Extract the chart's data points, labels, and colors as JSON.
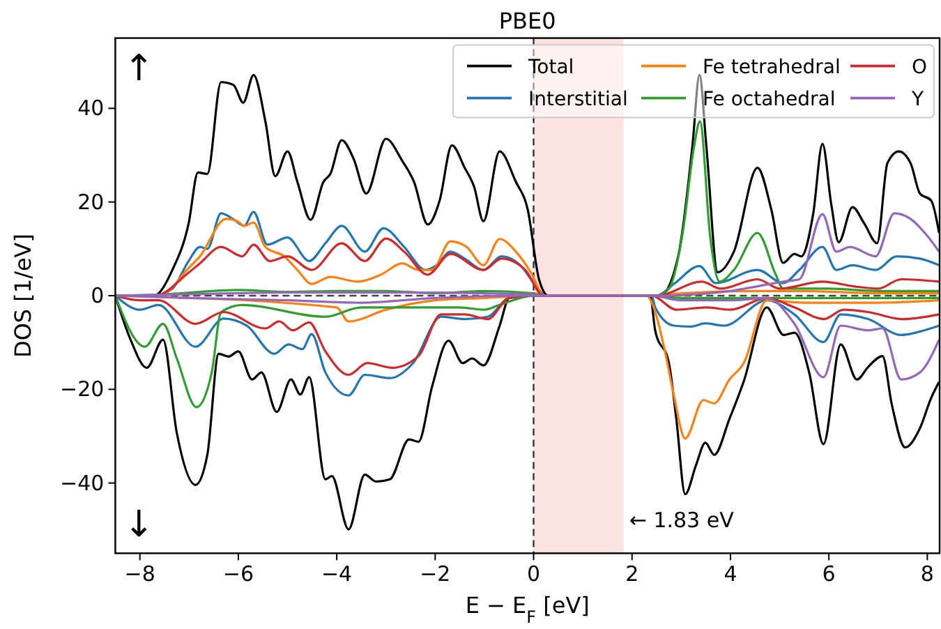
{
  "chart_data": {
    "type": "line",
    "title": "PBE0",
    "xlabel": "E − E$_{F}$ [eV]",
    "ylabel": "DOS [1/eV]",
    "xlim": [
      -8.5,
      8.25
    ],
    "ylim": [
      -55,
      55
    ],
    "xticks": [
      {
        "value": -8,
        "label": "−8"
      },
      {
        "value": -6,
        "label": "−6"
      },
      {
        "value": -4,
        "label": "−4"
      },
      {
        "value": -2,
        "label": "−2"
      },
      0,
      2,
      4,
      6,
      8
    ],
    "yticks": [
      {
        "value": -40,
        "label": "−40"
      },
      {
        "value": -20,
        "label": "−20"
      },
      0,
      20,
      40
    ],
    "legend": "top right",
    "ref_lines": [
      {
        "axis": "x",
        "value": 0,
        "color": "#333333",
        "line_style": "dashed"
      },
      {
        "axis": "y",
        "value": 0,
        "color": "#444444",
        "line_style": "dashed"
      }
    ],
    "bands": [
      {
        "axis": "x",
        "from": 0,
        "to": 1.83,
        "color": "#fde2e2"
      }
    ],
    "annotations": [
      "↑",
      "↓",
      {
        "text": "← 1.83 eV",
        "x": 1.83,
        "y": -48
      }
    ],
    "series": [
      {
        "name": "Total",
        "color": "#000000",
        "x": [
          -8.5,
          -7.72,
          -7.34,
          -7.01,
          -6.82,
          -6.63,
          -6.35,
          -6.1,
          -5.9,
          -5.69,
          -5.45,
          -5.25,
          -5.0,
          -4.8,
          -4.53,
          -4.27,
          -4.13,
          -3.9,
          -3.66,
          -3.4,
          -3.0,
          -2.67,
          -2.43,
          -2.15,
          -1.91,
          -1.66,
          -1.4,
          -1.21,
          -1.02,
          -0.69,
          -0.36,
          -0.12,
          0.11,
          0.3,
          2.57,
          2.94,
          3.23,
          3.37,
          3.51,
          3.74,
          4.07,
          4.55,
          4.83,
          5.07,
          5.3,
          5.44,
          5.68,
          5.87,
          6.05,
          6.2,
          6.48,
          6.72,
          6.98,
          7.19,
          7.42,
          7.66,
          7.85,
          8.08,
          8.24
        ],
        "values": [
          0,
          0,
          5.5,
          15.4,
          26.3,
          26,
          45.6,
          45,
          41.2,
          47.1,
          37.2,
          25.5,
          30.8,
          24.3,
          16.2,
          24.3,
          26,
          33.2,
          29.3,
          21.8,
          33.5,
          28.8,
          24.3,
          15.2,
          20.3,
          32.1,
          27.3,
          23.3,
          15.9,
          30.8,
          24.3,
          18.4,
          3.5,
          0,
          0,
          8.5,
          32.3,
          47.1,
          32,
          5,
          9.4,
          27.3,
          18.4,
          7,
          8.9,
          8.4,
          17.4,
          32.4,
          19.4,
          11.4,
          18.9,
          15.4,
          11.2,
          28.3,
          30.8,
          28.3,
          21.8,
          20.3,
          13.4
        ]
      },
      {
        "color": "#000000",
        "x": [
          -8.5,
          -8.19,
          -7.86,
          -7.53,
          -7.25,
          -6.87,
          -6.63,
          -6.4,
          -6.2,
          -6.0,
          -5.72,
          -5.53,
          -5.22,
          -4.93,
          -4.74,
          -4.56,
          -4.23,
          -4.1,
          -3.76,
          -3.43,
          -3.2,
          -2.92,
          -2.53,
          -2.34,
          -2.06,
          -1.73,
          -1.44,
          -1.25,
          -1.02,
          -0.69,
          -0.5,
          -0.3,
          2.37,
          2.47,
          2.75,
          2.9,
          3.08,
          3.3,
          3.49,
          3.67,
          3.98,
          4.27,
          4.74,
          5.08,
          5.3,
          5.6,
          5.89,
          6.24,
          6.57,
          6.8,
          7.09,
          7.28,
          7.55,
          7.85,
          8.08,
          8.24
        ],
        "values": [
          0,
          -9.4,
          -15.4,
          -9.4,
          -29.3,
          -40.4,
          -34,
          -12.4,
          -13,
          -11.9,
          -17.9,
          -16.4,
          -24.8,
          -17.9,
          -21.1,
          -17.4,
          -39.2,
          -38.5,
          -49.9,
          -38.2,
          -39.7,
          -39.2,
          -30.7,
          -31.2,
          -19.3,
          -9.6,
          -14.4,
          -13.4,
          -14.9,
          -6.4,
          -0.5,
          0,
          0,
          -7.4,
          -14.4,
          -26.3,
          -42.4,
          -36.2,
          -31.4,
          -34,
          -26.3,
          -18.3,
          -2.5,
          -8.4,
          -7.9,
          -16.4,
          -31.7,
          -10.4,
          -17.9,
          -15.2,
          -12.9,
          -23.3,
          -32.4,
          -28.3,
          -21.8,
          -18.4
        ]
      },
      {
        "name": "Interstitial",
        "color": "#1f77b4",
        "x": [
          -8.5,
          -7.7,
          -7.34,
          -7.01,
          -6.78,
          -6.63,
          -6.35,
          -6.11,
          -5.88,
          -5.69,
          -5.41,
          -5.0,
          -4.56,
          -4.23,
          -3.9,
          -3.43,
          -3.05,
          -2.63,
          -2.2,
          -1.97,
          -1.69,
          -1.4,
          -1.02,
          -0.65,
          -0.27,
          0.02,
          0.25,
          2.5,
          2.85,
          3.37,
          3.7,
          4.55,
          5.07,
          5.4,
          5.87,
          6.15,
          6.48,
          6.95,
          7.38,
          7.85,
          8.24
        ],
        "values": [
          0,
          0,
          1.5,
          7.4,
          10.4,
          10,
          17.6,
          16.4,
          14.9,
          17.9,
          10.9,
          12.4,
          7.4,
          11.2,
          14.9,
          9.4,
          14.4,
          10.4,
          5.5,
          6.5,
          9.4,
          7.9,
          5.5,
          8.4,
          6.5,
          2.5,
          0,
          0,
          2.5,
          6.3,
          2.7,
          5.5,
          2.7,
          5.5,
          10.4,
          5.5,
          6.5,
          5.5,
          8.4,
          7.9,
          6.5
        ]
      },
      {
        "color": "#1f77b4",
        "x": [
          -8.5,
          -8.0,
          -7.62,
          -6.87,
          -6.3,
          -5.83,
          -5.27,
          -4.98,
          -4.7,
          -4.51,
          -4.23,
          -3.76,
          -3.43,
          -2.92,
          -2.45,
          -1.88,
          -1.4,
          -0.93,
          -0.5,
          0,
          2.4,
          2.47,
          2.85,
          3.2,
          3.49,
          3.87,
          4.74,
          5.3,
          5.89,
          6.24,
          6.8,
          7.47,
          7.94,
          8.24
        ],
        "values": [
          0,
          -3,
          -2,
          -10.9,
          -4.9,
          -6.4,
          -12.4,
          -10.4,
          -11.4,
          -8.2,
          -16.4,
          -21.3,
          -16.9,
          -17.6,
          -14.4,
          -4.5,
          -5,
          -4.5,
          -0.5,
          0,
          0,
          -2.5,
          -6.4,
          -6.6,
          -5.9,
          -6.4,
          -1,
          -4,
          -9.9,
          -4,
          -5,
          -8.4,
          -7.4,
          -6.4
        ]
      },
      {
        "name": "Fe tetrahedral",
        "color": "#ff7f0e",
        "x": [
          -8.5,
          -7.6,
          -7.01,
          -6.78,
          -6.25,
          -6.02,
          -5.88,
          -5.69,
          -5.45,
          -5.07,
          -4.8,
          -4.51,
          -4.13,
          -3.57,
          -3.1,
          -2.67,
          -2.34,
          -2.06,
          -1.69,
          -1.36,
          -1.02,
          -0.69,
          -0.36,
          -0.03,
          0.2,
          2.5,
          3.0,
          4.5,
          5.5,
          7.0,
          8.24
        ],
        "values": [
          0,
          0,
          5.9,
          8.4,
          16.4,
          15.9,
          14.9,
          15.6,
          10.4,
          8.4,
          5.5,
          2.5,
          4,
          3,
          4.5,
          6.9,
          5.5,
          5.5,
          11.6,
          10.4,
          6.5,
          12.1,
          9.4,
          4.5,
          0,
          0,
          0.5,
          1,
          1,
          0.5,
          0.5
        ]
      },
      {
        "color": "#ff7f0e",
        "x": [
          -8.5,
          -7.0,
          -5.0,
          -4.0,
          -3.76,
          -3.0,
          -2.0,
          -1.0,
          0,
          2.3,
          2.44,
          2.66,
          2.85,
          3.08,
          3.45,
          3.67,
          3.98,
          4.27,
          4.74,
          5.5,
          7.0,
          8.24
        ],
        "values": [
          0,
          null,
          null,
          -2.5,
          -5.5,
          -3,
          -1,
          -0.5,
          0,
          0,
          -2.5,
          -11.4,
          -21.3,
          -30.5,
          -22.3,
          -23,
          -17.9,
          -14.4,
          -1,
          -1.5,
          -1.5,
          -1
        ]
      },
      {
        "name": "Fe octahedral",
        "color": "#2ca02c",
        "x": [
          -8.5,
          -7.5,
          -6.0,
          -5.0,
          -4.0,
          -3.0,
          -2.0,
          -1.0,
          0,
          0.2,
          2.5,
          2.75,
          3.03,
          3.26,
          3.38,
          3.59,
          3.78,
          4.07,
          4.55,
          4.92,
          5.07,
          6.0,
          7.0,
          8.24
        ],
        "values": [
          0,
          0.3,
          1.2,
          0.8,
          1,
          1,
          0.5,
          1,
          0.5,
          0,
          0,
          1.5,
          13.4,
          31.8,
          37.2,
          12.4,
          3,
          5.5,
          13.4,
          4.5,
          1.5,
          1.5,
          1,
          1
        ]
      },
      {
        "color": "#2ca02c",
        "x": [
          -8.5,
          -7.9,
          -7.53,
          -7.25,
          -6.85,
          -6.54,
          -6.35,
          -5.92,
          -4.23,
          -3.5,
          -2.92,
          -1.5,
          -1.0,
          -0.7,
          0,
          2.4,
          3.0,
          5.0,
          8.24
        ],
        "values": [
          0,
          -10.9,
          -6,
          -13.4,
          -23.8,
          -16.4,
          -3.5,
          -2,
          -4.5,
          -2.5,
          -2.5,
          -2.5,
          -3,
          -2,
          0,
          0,
          -0.5,
          -0.5,
          -0.5
        ]
      },
      {
        "name": "O",
        "color": "#d62728",
        "x": [
          -8.5,
          -7.7,
          -7.01,
          -6.78,
          -6.35,
          -5.92,
          -5.69,
          -5.36,
          -5.0,
          -4.51,
          -3.9,
          -3.43,
          -3.0,
          -2.63,
          -2.15,
          -1.69,
          -1.02,
          -0.65,
          -0.17,
          0.2,
          2.5,
          3.42,
          3.8,
          4.55,
          5.0,
          5.87,
          6.5,
          7.0,
          7.47,
          8.24
        ],
        "values": [
          0,
          0,
          4.9,
          6.9,
          10.4,
          8.4,
          10.9,
          7.4,
          8.4,
          5.5,
          11.2,
          7.4,
          12.2,
          9.4,
          4.5,
          8.9,
          5.5,
          7.9,
          5.5,
          0,
          0,
          3,
          1.5,
          3.5,
          1.5,
          3,
          2,
          1.5,
          3.5,
          3
        ]
      },
      {
        "color": "#d62728",
        "x": [
          -8.5,
          -8.0,
          -7.62,
          -6.87,
          -6.3,
          -5.45,
          -5.17,
          -4.89,
          -4.56,
          -4.23,
          -3.76,
          -3.38,
          -2.87,
          -2.34,
          -1.88,
          -1.4,
          -0.93,
          -0.5,
          0,
          2.4,
          2.9,
          3.5,
          4.0,
          4.74,
          5.3,
          5.9,
          6.3,
          6.8,
          7.5,
          8.24
        ],
        "values": [
          0,
          -1,
          -1,
          -6,
          -3.5,
          -7,
          -5.5,
          -7.4,
          -5.7,
          -11.9,
          -16.9,
          -14.4,
          -15.4,
          -12.9,
          -4,
          -4,
          -5,
          -0.5,
          0,
          0,
          -3,
          -2.5,
          -3,
          -0.5,
          -2.5,
          -5,
          -3,
          -3.5,
          -5,
          -4
        ]
      },
      {
        "name": "Y",
        "color": "#9467bd",
        "x": [
          -8.5,
          -7.0,
          -5.0,
          -3.0,
          -1.0,
          0,
          0.2,
          2.5,
          4.0,
          4.55,
          5.07,
          5.4,
          5.87,
          6.15,
          6.43,
          6.95,
          7.33,
          7.66,
          7.95,
          8.24
        ],
        "values": [
          0,
          0.3,
          0.7,
          0.7,
          0.5,
          0.2,
          0,
          0,
          1,
          2,
          3,
          3.5,
          17.4,
          9.4,
          10.4,
          8.4,
          17.6,
          16.4,
          13.4,
          9.4
        ]
      },
      {
        "color": "#9467bd",
        "x": [
          -8.5,
          -7.0,
          -5.0,
          -3.5,
          -2.0,
          0,
          2.4,
          3.0,
          4.0,
          4.74,
          5.3,
          5.89,
          6.24,
          6.8,
          7.09,
          7.47,
          7.85,
          8.24
        ],
        "values": [
          0,
          -0.5,
          -1,
          -1.5,
          -0.5,
          0,
          0,
          -1,
          -1,
          -0.5,
          -6,
          -17.4,
          -6.4,
          -7.4,
          -7,
          -17.9,
          -16.4,
          -9.4
        ]
      }
    ]
  }
}
